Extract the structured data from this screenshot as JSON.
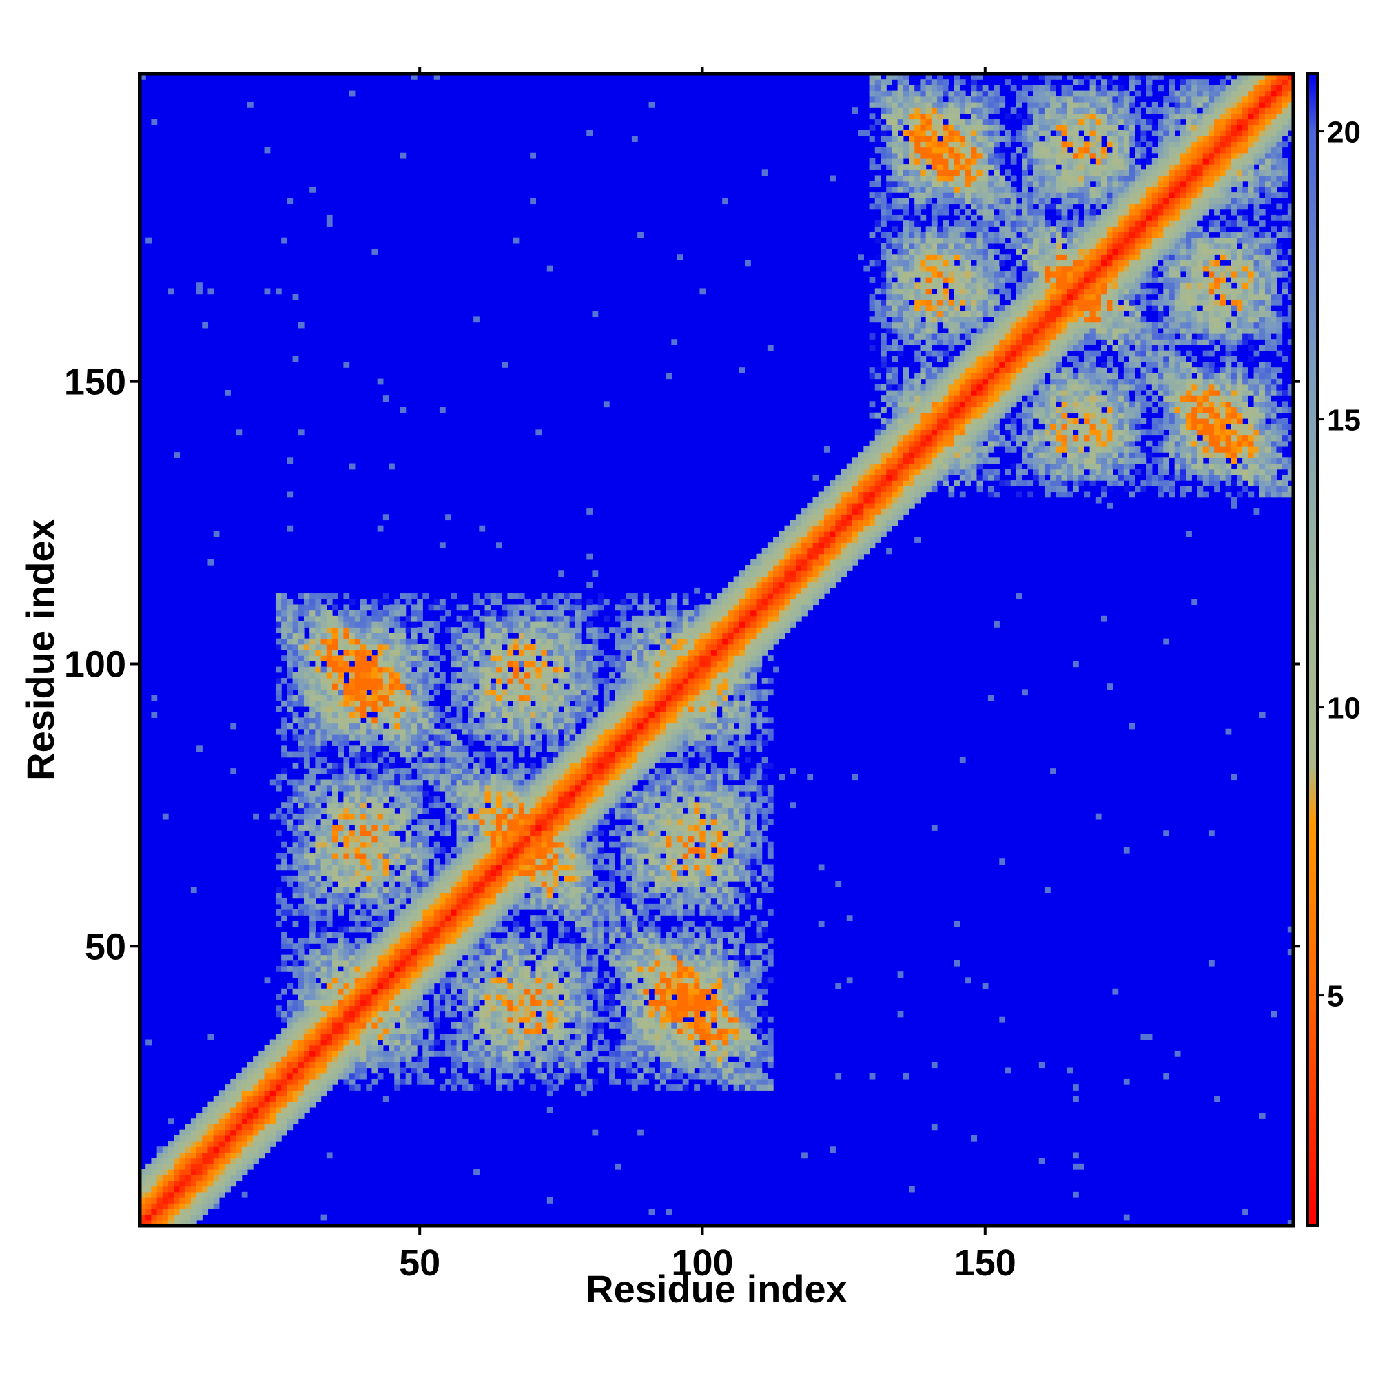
{
  "chart_data": {
    "type": "heatmap",
    "title": "",
    "xlabel": "Residue index",
    "ylabel": "Residue index",
    "n_residues": 204,
    "x_range": [
      1,
      204
    ],
    "y_range": [
      1,
      204
    ],
    "x_ticks": [
      50,
      100,
      150
    ],
    "y_ticks": [
      50,
      100,
      150
    ],
    "value_range": [
      1,
      21
    ],
    "colorbar_ticks": [
      5,
      10,
      15,
      20
    ],
    "background_value": 21,
    "domains": [
      {
        "start": 25,
        "end": 112
      },
      {
        "start": 130,
        "end": 204
      }
    ],
    "colorscale": [
      {
        "value": 1,
        "color": "#ff0000"
      },
      {
        "value": 5,
        "color": "#ff6600"
      },
      {
        "value": 8,
        "color": "#ff9900"
      },
      {
        "value": 9,
        "color": "#aeb98a"
      },
      {
        "value": 12,
        "color": "#9fb79b"
      },
      {
        "value": 16,
        "color": "#7a9cc0"
      },
      {
        "value": 20,
        "color": "#4a66d8"
      },
      {
        "value": 21,
        "color": "#0000ee"
      }
    ]
  }
}
